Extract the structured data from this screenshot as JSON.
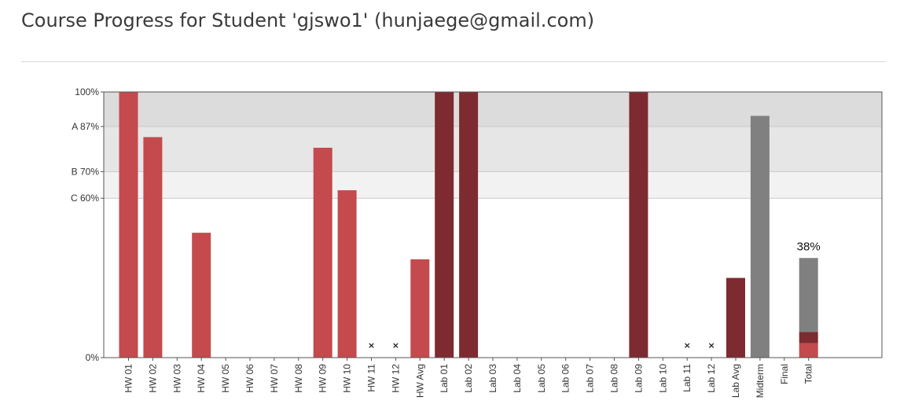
{
  "header": {
    "title": "Course Progress for Student 'gjswo1' (hunjaege@gmail.com)"
  },
  "colors": {
    "hw": "#c44a4d",
    "lab": "#7d2b30",
    "exam": "#808080",
    "band_top": "#dcdcdc",
    "band_a": "#e6e6e6",
    "band_b": "#f2f2f2"
  },
  "chart_data": {
    "type": "bar",
    "ylim": [
      0,
      100
    ],
    "grade_cutoffs": [
      {
        "label": "A",
        "value": 87
      },
      {
        "label": "B",
        "value": 70
      },
      {
        "label": "C",
        "value": 60
      }
    ],
    "y_ticks": [
      {
        "value": 100,
        "label": "100%"
      },
      {
        "value": 87,
        "label": "A 87%"
      },
      {
        "value": 70,
        "label": "B 70%"
      },
      {
        "value": 60,
        "label": "C 60%"
      },
      {
        "value": 0,
        "label": "0%"
      }
    ],
    "categories": [
      "HW 01",
      "HW 02",
      "HW 03",
      "HW 04",
      "HW 05",
      "HW 06",
      "HW 07",
      "HW 08",
      "HW 09",
      "HW 10",
      "HW 11",
      "HW 12",
      "HW Avg",
      "Lab 01",
      "Lab 02",
      "Lab 03",
      "Lab 04",
      "Lab 05",
      "Lab 06",
      "Lab 07",
      "Lab 08",
      "Lab 09",
      "Lab 10",
      "Lab 11",
      "Lab 12",
      "Lab Avg",
      "Midterm",
      "Final",
      "Total"
    ],
    "bars": [
      {
        "category": "HW 01",
        "value": 100,
        "kind": "hw"
      },
      {
        "category": "HW 02",
        "value": 83,
        "kind": "hw"
      },
      {
        "category": "HW 03",
        "value": 0,
        "kind": "hw"
      },
      {
        "category": "HW 04",
        "value": 47,
        "kind": "hw"
      },
      {
        "category": "HW 05",
        "value": 0,
        "kind": "hw"
      },
      {
        "category": "HW 06",
        "value": 0,
        "kind": "hw"
      },
      {
        "category": "HW 07",
        "value": 0,
        "kind": "hw"
      },
      {
        "category": "HW 08",
        "value": 0,
        "kind": "hw"
      },
      {
        "category": "HW 09",
        "value": 79,
        "kind": "hw"
      },
      {
        "category": "HW 10",
        "value": 63,
        "kind": "hw"
      },
      {
        "category": "HW 11",
        "value": null,
        "kind": "hw",
        "not_submitted": true
      },
      {
        "category": "HW 12",
        "value": null,
        "kind": "hw",
        "not_submitted": true
      },
      {
        "category": "HW Avg",
        "value": 37,
        "kind": "hw"
      },
      {
        "category": "Lab 01",
        "value": 100,
        "kind": "lab"
      },
      {
        "category": "Lab 02",
        "value": 100,
        "kind": "lab"
      },
      {
        "category": "Lab 03",
        "value": 0,
        "kind": "lab"
      },
      {
        "category": "Lab 04",
        "value": 0,
        "kind": "lab"
      },
      {
        "category": "Lab 05",
        "value": 0,
        "kind": "lab"
      },
      {
        "category": "Lab 06",
        "value": 0,
        "kind": "lab"
      },
      {
        "category": "Lab 07",
        "value": 0,
        "kind": "lab"
      },
      {
        "category": "Lab 08",
        "value": 0,
        "kind": "lab"
      },
      {
        "category": "Lab 09",
        "value": 100,
        "kind": "lab"
      },
      {
        "category": "Lab 10",
        "value": 0,
        "kind": "lab"
      },
      {
        "category": "Lab 11",
        "value": null,
        "kind": "lab",
        "not_submitted": true
      },
      {
        "category": "Lab 12",
        "value": null,
        "kind": "lab",
        "not_submitted": true
      },
      {
        "category": "Lab Avg",
        "value": 30,
        "kind": "lab"
      },
      {
        "category": "Midterm",
        "value": 91,
        "kind": "exam"
      },
      {
        "category": "Final",
        "value": null,
        "kind": "exam"
      }
    ],
    "total": {
      "category": "Total",
      "label": "38%",
      "value": 38,
      "stack": [
        {
          "name": "hw",
          "value": 5.4
        },
        {
          "name": "lab",
          "value": 4.3
        },
        {
          "name": "exam",
          "value": 27.8
        }
      ]
    },
    "not_submitted_marker": "×"
  }
}
